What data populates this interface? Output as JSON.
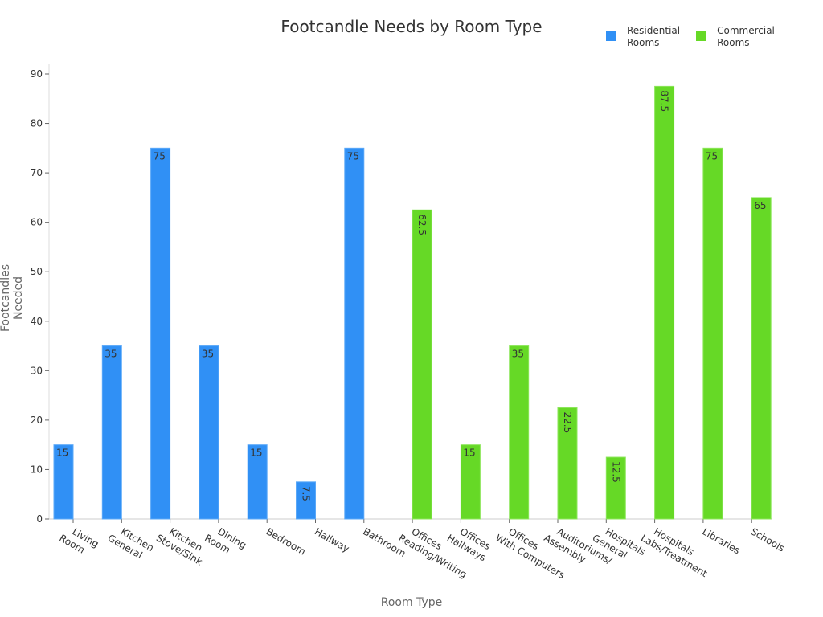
{
  "chart_data": {
    "type": "bar",
    "title": "Footcandle Needs by Room Type",
    "xlabel": "Room Type",
    "ylabel": "Footcandles Needed",
    "ylim": [
      0,
      90
    ],
    "yticks": [
      0,
      10,
      20,
      30,
      40,
      50,
      60,
      70,
      80,
      90
    ],
    "grid": false,
    "legend_position": "top-right",
    "categories": [
      "Living\nRoom",
      "Kitchen\nGeneral",
      "Kitchen\nStove/Sink",
      "Dining\nRoom",
      "Bedroom",
      "Hallway",
      "Bathroom",
      "Offices\nReading/Writing",
      "Offices\nHallways",
      "Offices\nWith Computers",
      "Auditoriums/\nAssembly",
      "Hospitals\nGeneral",
      "Hospitals\nLabs/Treatment",
      "Libraries",
      "Schools"
    ],
    "series": [
      {
        "name": "Residential Rooms",
        "color": "#3090f5",
        "values": [
          15,
          35,
          75,
          35,
          15,
          7.5,
          75,
          null,
          null,
          null,
          null,
          null,
          null,
          null,
          null
        ]
      },
      {
        "name": "Commercial Rooms",
        "color": "#66d926",
        "values": [
          null,
          null,
          null,
          null,
          null,
          null,
          null,
          62.5,
          15,
          35,
          22.5,
          12.5,
          87.5,
          75,
          65
        ]
      }
    ]
  },
  "legend": {
    "residential": "Residential\nRooms",
    "commercial": "Commercial\nRooms"
  }
}
